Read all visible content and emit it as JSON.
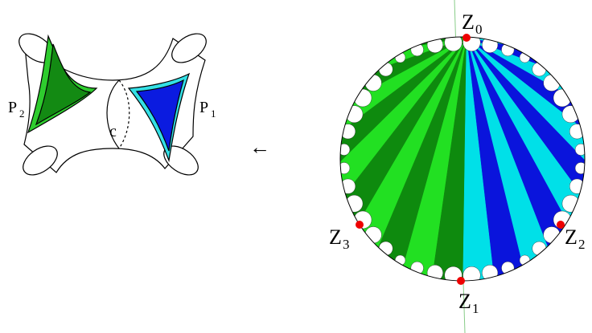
{
  "surface": {
    "left_label": {
      "letter": "P",
      "index": "2"
    },
    "right_label": {
      "letter": "P",
      "index": "1"
    },
    "curve_label": "c"
  },
  "arrow": "←",
  "disk_points": [
    {
      "letter": "Z",
      "index": "0"
    },
    {
      "letter": "Z",
      "index": "1"
    },
    {
      "letter": "Z",
      "index": "2"
    },
    {
      "letter": "Z",
      "index": "3"
    }
  ]
}
